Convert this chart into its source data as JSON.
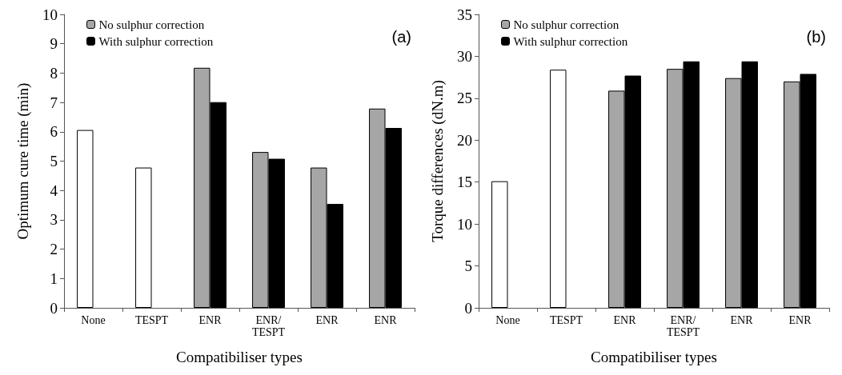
{
  "chart_data": [
    {
      "type": "bar",
      "xlabel": "Compatibiliser types",
      "ylabel": "Optimum cure time (min)",
      "categories": [
        "None",
        "TESPT",
        "ENR",
        "ENR/TESPT",
        "ENR",
        "ENR"
      ],
      "ylim": [
        0,
        10
      ],
      "yticks": [
        0,
        1,
        2,
        3,
        4,
        5,
        6,
        7,
        8,
        9,
        10
      ],
      "grid": false,
      "legend": "top left",
      "annotations": [
        "(a)"
      ],
      "series": [
        {
          "name": "No sulphur correction",
          "color": "#a6a6a6",
          "colors": [
            "#ffffff",
            "#ffffff",
            "#a6a6a6",
            "#a6a6a6",
            "#a6a6a6",
            "#a6a6a6"
          ],
          "values": [
            6.06,
            4.78,
            8.18,
            5.31,
            4.78,
            6.79
          ]
        },
        {
          "name": "With sulphur correction",
          "color": "#000000",
          "values": [
            null,
            null,
            7.01,
            5.08,
            3.54,
            6.13
          ]
        }
      ]
    },
    {
      "type": "bar",
      "xlabel": "Compatibiliser types",
      "ylabel": "Torque differences (dN.m)",
      "categories": [
        "None",
        "TESPT",
        "ENR",
        "ENR/TESPT",
        "ENR",
        "ENR"
      ],
      "ylim": [
        0,
        35
      ],
      "yticks": [
        0,
        5,
        10,
        15,
        20,
        25,
        30,
        35
      ],
      "grid": false,
      "legend": "top left",
      "annotations": [
        "(b)"
      ],
      "series": [
        {
          "name": "No sulphur correction",
          "color": "#a6a6a6",
          "colors": [
            "#ffffff",
            "#ffffff",
            "#a6a6a6",
            "#a6a6a6",
            "#a6a6a6",
            "#a6a6a6"
          ],
          "values": [
            15.1,
            28.4,
            25.9,
            28.5,
            27.4,
            27.0
          ]
        },
        {
          "name": "With sulphur correction",
          "color": "#000000",
          "values": [
            null,
            null,
            27.7,
            29.4,
            29.4,
            27.9
          ]
        }
      ]
    }
  ]
}
